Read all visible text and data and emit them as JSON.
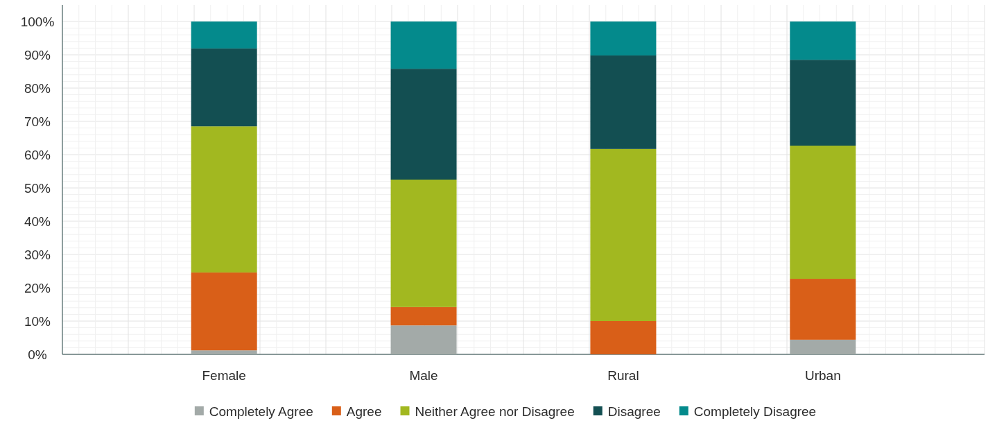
{
  "chart_data": {
    "type": "bar",
    "stacked": true,
    "categories": [
      "Female",
      "Male",
      "Rural",
      "Urban"
    ],
    "series": [
      {
        "name": "Completely Agree",
        "color": "#a3aaa8",
        "values": [
          1.2,
          8.7,
          0,
          4.4
        ]
      },
      {
        "name": "Agree",
        "color": "#d95f18",
        "values": [
          23.4,
          5.5,
          10,
          18.3
        ]
      },
      {
        "name": "Neither Agree nor Disagree",
        "color": "#a2b820",
        "values": [
          43.9,
          38.3,
          51.7,
          40
        ]
      },
      {
        "name": "Disagree",
        "color": "#134f52",
        "values": [
          23.4,
          33.3,
          28.1,
          25.8
        ]
      },
      {
        "name": "Completely Disagree",
        "color": "#048a8c",
        "values": [
          8.1,
          14.2,
          10.2,
          11.5
        ]
      }
    ],
    "ylim": [
      0,
      100
    ],
    "yticks": [
      {
        "value": 0,
        "label": "0%"
      },
      {
        "value": 10,
        "label": "10%"
      },
      {
        "value": 20,
        "label": "20%"
      },
      {
        "value": 30,
        "label": "30%"
      },
      {
        "value": 40,
        "label": "40%"
      },
      {
        "value": 50,
        "label": "50%"
      },
      {
        "value": 60,
        "label": "60%"
      },
      {
        "value": 70,
        "label": "70%"
      },
      {
        "value": 80,
        "label": "80%"
      },
      {
        "value": 90,
        "label": "90%"
      },
      {
        "value": 100,
        "label": "100%"
      }
    ],
    "grid": true,
    "legend": "bottom"
  }
}
